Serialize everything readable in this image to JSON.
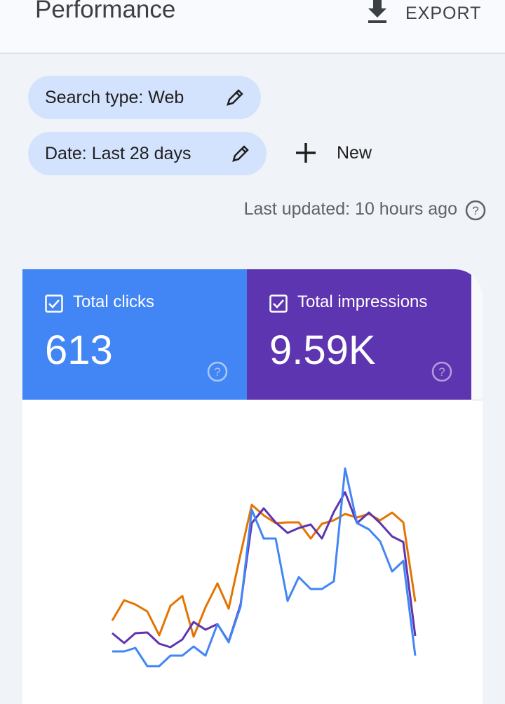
{
  "header": {
    "title": "Performance",
    "export": "EXPORT"
  },
  "filters": {
    "search_type": "Search type: Web",
    "date": "Date: Last 28 days",
    "new": "New"
  },
  "last_updated": "Last updated: 10 hours ago",
  "metrics": [
    {
      "label": "Total clicks",
      "value": "613"
    },
    {
      "label": "Total impressions",
      "value": "9.59K"
    }
  ]
}
